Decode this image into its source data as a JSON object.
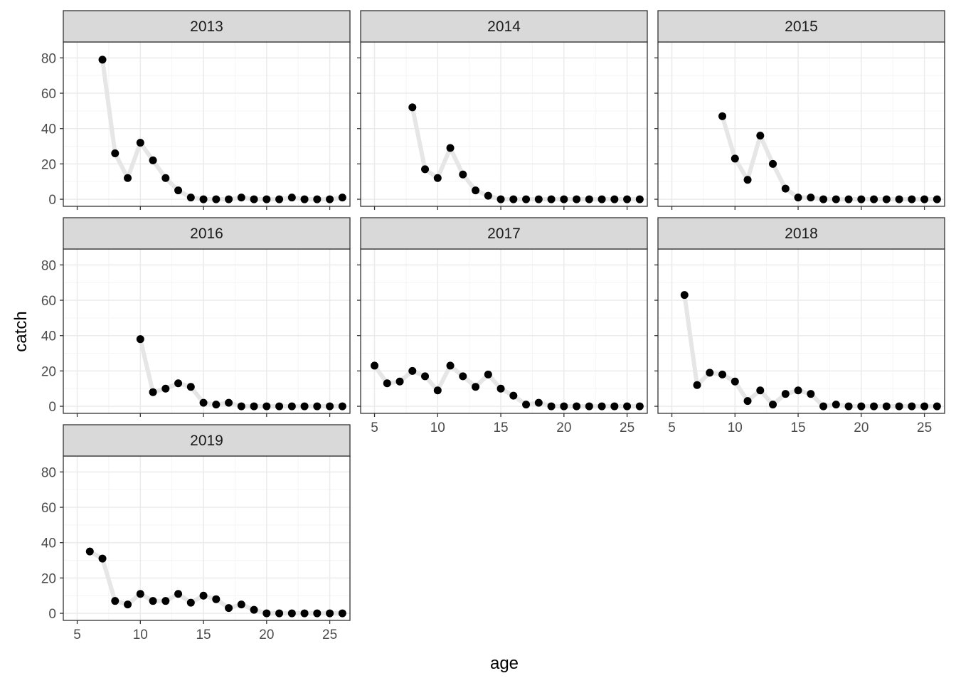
{
  "chart_data": {
    "type": "line",
    "xlabel": "age",
    "ylabel": "catch",
    "xlim": [
      3.9,
      26.6
    ],
    "ylim": [
      -4,
      89
    ],
    "x_ticks": [
      5,
      10,
      15,
      20,
      25
    ],
    "y_ticks": [
      0,
      20,
      40,
      60,
      80
    ],
    "grid": true,
    "layout": "facet-wrap-3-columns",
    "colors": {
      "line": "#e6e6e6",
      "point": "#000000",
      "strip_fill": "#d9d9d9",
      "border": "#333333",
      "grid_major": "#ebebeb",
      "grid_minor": "#f5f5f5"
    },
    "panels": [
      {
        "label": "2013",
        "x": [
          7,
          8,
          9,
          10,
          11,
          12,
          13,
          14,
          15,
          16,
          17,
          18,
          19,
          20,
          21,
          22,
          23,
          24,
          25,
          26
        ],
        "y": [
          79,
          26,
          12,
          32,
          22,
          12,
          5,
          1,
          0,
          0,
          0,
          1,
          0,
          0,
          0,
          1,
          0,
          0,
          0,
          1
        ]
      },
      {
        "label": "2014",
        "x": [
          8,
          9,
          10,
          11,
          12,
          13,
          14,
          15,
          16,
          17,
          18,
          19,
          20,
          21,
          22,
          23,
          24,
          25,
          26
        ],
        "y": [
          52,
          17,
          12,
          29,
          14,
          5,
          2,
          0,
          0,
          0,
          0,
          0,
          0,
          0,
          0,
          0,
          0,
          0,
          0
        ]
      },
      {
        "label": "2015",
        "x": [
          9,
          10,
          11,
          12,
          13,
          14,
          15,
          16,
          17,
          18,
          19,
          20,
          21,
          22,
          23,
          24,
          25,
          26
        ],
        "y": [
          47,
          23,
          11,
          36,
          20,
          6,
          1,
          1,
          0,
          0,
          0,
          0,
          0,
          0,
          0,
          0,
          0,
          0
        ]
      },
      {
        "label": "2016",
        "x": [
          10,
          11,
          12,
          13,
          14,
          15,
          16,
          17,
          18,
          19,
          20,
          21,
          22,
          23,
          24,
          25,
          26
        ],
        "y": [
          38,
          8,
          10,
          13,
          11,
          2,
          1,
          2,
          0,
          0,
          0,
          0,
          0,
          0,
          0,
          0,
          0
        ]
      },
      {
        "label": "2017",
        "x": [
          5,
          6,
          7,
          8,
          9,
          10,
          11,
          12,
          13,
          14,
          15,
          16,
          17,
          18,
          19,
          20,
          21,
          22,
          23,
          24,
          25,
          26
        ],
        "y": [
          23,
          13,
          14,
          20,
          17,
          9,
          23,
          17,
          11,
          18,
          10,
          6,
          1,
          2,
          0,
          0,
          0,
          0,
          0,
          0,
          0,
          0
        ]
      },
      {
        "label": "2018",
        "x": [
          6,
          7,
          8,
          9,
          10,
          11,
          12,
          13,
          14,
          15,
          16,
          17,
          18,
          19,
          20,
          21,
          22,
          23,
          24,
          25,
          26
        ],
        "y": [
          63,
          12,
          19,
          18,
          14,
          3,
          9,
          1,
          7,
          9,
          7,
          0,
          1,
          0,
          0,
          0,
          0,
          0,
          0,
          0,
          0
        ]
      },
      {
        "label": "2019",
        "x": [
          6,
          7,
          8,
          9,
          10,
          11,
          12,
          13,
          14,
          15,
          16,
          17,
          18,
          19,
          20,
          21,
          22,
          23,
          24,
          25,
          26
        ],
        "y": [
          35,
          31,
          7,
          5,
          11,
          7,
          7,
          11,
          6,
          10,
          8,
          3,
          5,
          2,
          0,
          0,
          0,
          0,
          0,
          0,
          0
        ]
      }
    ]
  }
}
